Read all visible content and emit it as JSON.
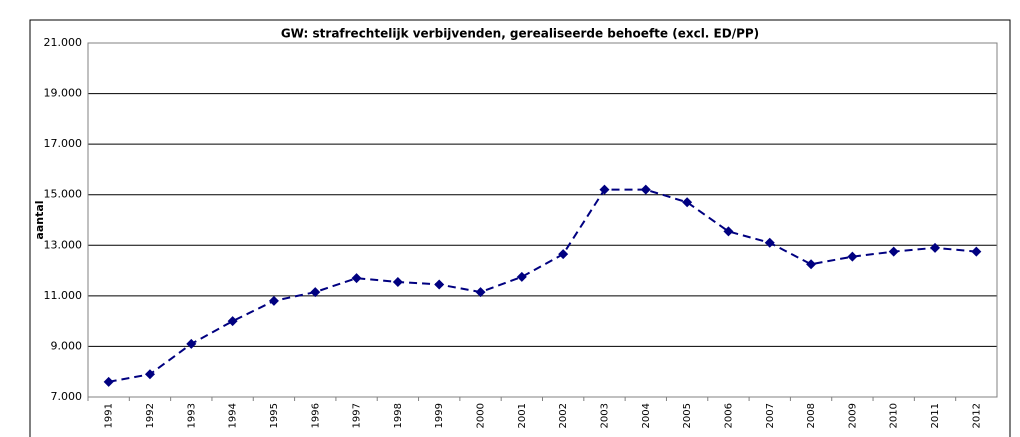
{
  "chart_data": {
    "type": "line",
    "title": "GW: strafrechtelijk verbijvenden, gerealiseerde behoefte (excl. ED/PP)",
    "y_label": "aantal",
    "categories": [
      "1991",
      "1992",
      "1993",
      "1994",
      "1995",
      "1996",
      "1997",
      "1998",
      "1999",
      "2000",
      "2001",
      "2002",
      "2003",
      "2004",
      "2005",
      "2006",
      "2007",
      "2008",
      "2009",
      "2010",
      "2011",
      "2012"
    ],
    "series": [
      {
        "color": "#000080",
        "values": [
          7600,
          7900,
          9100,
          10000,
          10800,
          11150,
          11700,
          11550,
          11450,
          11150,
          11750,
          12650,
          15200,
          15200,
          14700,
          13550,
          13100,
          12250,
          12550,
          12750,
          12900,
          12750
        ]
      }
    ],
    "ylim": [
      7000,
      21000
    ],
    "yticks": [
      {
        "value": 7000,
        "label": "7.000"
      },
      {
        "value": 9000,
        "label": "9.000"
      },
      {
        "value": 11000,
        "label": "11.000"
      },
      {
        "value": 13000,
        "label": "13.000"
      },
      {
        "value": 15000,
        "label": "15.000"
      },
      {
        "value": 17000,
        "label": "17.000"
      },
      {
        "value": 19000,
        "label": "19.000"
      },
      {
        "value": 21000,
        "label": "21.000"
      }
    ],
    "grid": true
  }
}
